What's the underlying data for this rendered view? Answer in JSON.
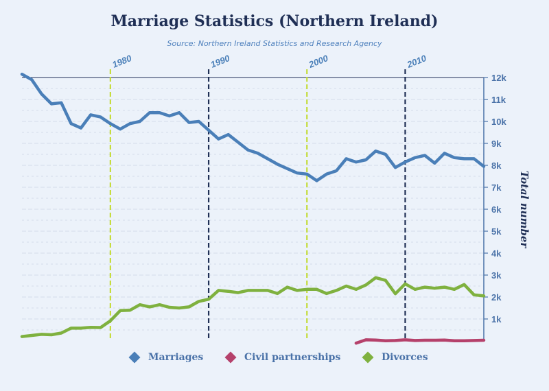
{
  "chart_data": {
    "type": "line",
    "title": "Marriage Statistics (Northern Ireland)",
    "subtitle": "Source: Northern Ireland Statistics and Research Agency",
    "ylabel": "Total number",
    "xlim": [
      1971,
      2018
    ],
    "ylim": [
      0,
      12000
    ],
    "y_ticks": [
      1000,
      2000,
      3000,
      4000,
      5000,
      6000,
      7000,
      8000,
      9000,
      10000,
      11000,
      12000
    ],
    "y_tick_labels": [
      "1k",
      "2k",
      "3k",
      "4k",
      "5k",
      "6k",
      "7k",
      "8k",
      "9k",
      "10k",
      "11k",
      "12k"
    ],
    "grid": true,
    "legend_position": "bottom",
    "decade_markers": [
      {
        "year": 1980,
        "label": "1980",
        "color": "#c5dc3a"
      },
      {
        "year": 1990,
        "label": "1990",
        "color": "#1f2f55"
      },
      {
        "year": 2000,
        "label": "2000",
        "color": "#c5dc3a"
      },
      {
        "year": 2010,
        "label": "2010",
        "color": "#1f2f55"
      }
    ],
    "series": [
      {
        "name": "Marriages",
        "color": "#4a7fb8",
        "x": [
          1971,
          1972,
          1973,
          1974,
          1975,
          1976,
          1977,
          1978,
          1979,
          1980,
          1981,
          1982,
          1983,
          1984,
          1985,
          1986,
          1987,
          1988,
          1989,
          1990,
          1991,
          1992,
          1993,
          1994,
          1995,
          1996,
          1997,
          1998,
          1999,
          2000,
          2001,
          2002,
          2003,
          2004,
          2005,
          2006,
          2007,
          2008,
          2009,
          2010,
          2011,
          2012,
          2013,
          2014,
          2015,
          2016,
          2017,
          2018
        ],
        "values": [
          12150,
          11900,
          11250,
          10800,
          10850,
          9900,
          9700,
          10300,
          10200,
          9900,
          9650,
          9900,
          10000,
          10400,
          10400,
          10250,
          10400,
          9950,
          10000,
          9600,
          9200,
          9400,
          9050,
          8700,
          8550,
          8300,
          8050,
          7850,
          7650,
          7600,
          7300,
          7600,
          7750,
          8300,
          8150,
          8250,
          8650,
          8500,
          7900,
          8150,
          8350,
          8450,
          8100,
          8550,
          8350,
          8300,
          8300,
          7950
        ]
      },
      {
        "name": "Civil partnerships",
        "color": "#b5416b",
        "x": [
          2005,
          2006,
          2007,
          2008,
          2009,
          2010,
          2011,
          2012,
          2013,
          2014,
          2015,
          2016,
          2017,
          2018
        ],
        "values": [
          -100,
          50,
          40,
          10,
          20,
          50,
          20,
          30,
          30,
          40,
          10,
          10,
          20,
          30
        ]
      },
      {
        "name": "Divorces",
        "color": "#7fb13f",
        "x": [
          1971,
          1972,
          1973,
          1974,
          1975,
          1976,
          1977,
          1978,
          1979,
          1980,
          1981,
          1982,
          1983,
          1984,
          1985,
          1986,
          1987,
          1988,
          1989,
          1990,
          1991,
          1992,
          1993,
          1994,
          1995,
          1996,
          1997,
          1998,
          1999,
          2000,
          2001,
          2002,
          2003,
          2004,
          2005,
          2006,
          2007,
          2008,
          2009,
          2010,
          2011,
          2012,
          2013,
          2014,
          2015,
          2016,
          2017,
          2018
        ],
        "values": [
          200,
          250,
          300,
          280,
          360,
          580,
          580,
          620,
          610,
          920,
          1380,
          1400,
          1650,
          1550,
          1650,
          1530,
          1500,
          1550,
          1800,
          1900,
          2300,
          2260,
          2200,
          2300,
          2300,
          2300,
          2160,
          2450,
          2300,
          2350,
          2350,
          2160,
          2300,
          2500,
          2350,
          2550,
          2880,
          2760,
          2150,
          2600,
          2350,
          2450,
          2400,
          2450,
          2350,
          2570,
          2100,
          2050
        ]
      }
    ]
  }
}
